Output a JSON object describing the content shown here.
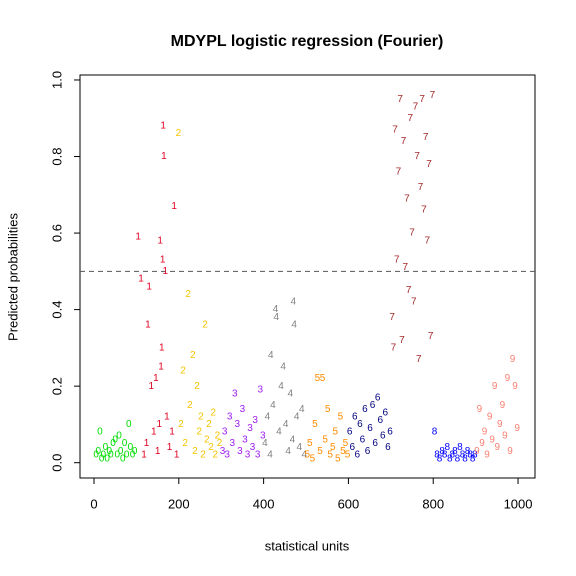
{
  "chart_data": {
    "type": "scatter",
    "title": "MDYPL logistic regression (Fourier)",
    "x_label": "statistical units",
    "y_label": "Predicted probabilities",
    "xlim": [
      -33,
      1040
    ],
    "ylim": [
      -0.04,
      1.013
    ],
    "xticks": [
      0,
      200,
      400,
      600,
      800,
      1000
    ],
    "yticks": [
      {
        "value": 0,
        "label": "0.0"
      },
      0.2,
      0.4,
      0.6,
      0.8,
      {
        "value": 1,
        "label": "1.0"
      }
    ],
    "hline": 0.5,
    "series": [
      {
        "name": "0",
        "color": "#00dd00",
        "x": [
          5,
          10,
          14,
          18,
          22,
          27,
          31,
          36,
          40,
          45,
          50,
          55,
          59,
          63,
          68,
          72,
          77,
          82,
          86,
          91,
          96
        ],
        "values": [
          0.02,
          0.03,
          0.08,
          0.01,
          0.02,
          0.04,
          0.01,
          0.03,
          0.02,
          0.05,
          0.06,
          0.02,
          0.07,
          0.03,
          0.01,
          0.05,
          0.02,
          0.1,
          0.04,
          0.02,
          0.03
        ]
      },
      {
        "name": "1",
        "color": "#e00020",
        "x": [
          104,
          111,
          118,
          124,
          127,
          130,
          135,
          141,
          146,
          150,
          154,
          156,
          158,
          160,
          162,
          163,
          165,
          168,
          172,
          178,
          184,
          189,
          195
        ],
        "values": [
          0.59,
          0.48,
          0.02,
          0.05,
          0.36,
          0.46,
          0.2,
          0.08,
          0.22,
          0.03,
          0.1,
          0.58,
          0.25,
          0.3,
          0.53,
          0.88,
          0.8,
          0.5,
          0.12,
          0.04,
          0.08,
          0.67,
          0.02
        ]
      },
      {
        "name": "2",
        "color": "#f5c400",
        "x": [
          199,
          205,
          210,
          215,
          222,
          226,
          233,
          238,
          243,
          248,
          252,
          257,
          262,
          266,
          271,
          276,
          281,
          286,
          291,
          296
        ],
        "values": [
          0.86,
          0.1,
          0.24,
          0.05,
          0.44,
          0.15,
          0.28,
          0.03,
          0.2,
          0.08,
          0.12,
          0.02,
          0.36,
          0.06,
          0.1,
          0.04,
          0.13,
          0.02,
          0.07,
          0.05
        ]
      },
      {
        "name": "3",
        "color": "#a020f0",
        "x": [
          303,
          308,
          314,
          320,
          326,
          332,
          338,
          344,
          350,
          356,
          362,
          368,
          374,
          380,
          386,
          392,
          398
        ],
        "values": [
          0.03,
          0.08,
          0.02,
          0.12,
          0.05,
          0.18,
          0.1,
          0.03,
          0.14,
          0.06,
          0.02,
          0.09,
          0.04,
          0.11,
          0.02,
          0.19,
          0.07
        ]
      },
      {
        "name": "4",
        "color": "#7f7f7f",
        "x": [
          403,
          409,
          415,
          417,
          422,
          428,
          430,
          436,
          441,
          446,
          452,
          458,
          463,
          468,
          470,
          472,
          478,
          484,
          490,
          496
        ],
        "values": [
          0.05,
          0.12,
          0.02,
          0.28,
          0.15,
          0.4,
          0.38,
          0.08,
          0.2,
          0.25,
          0.1,
          0.03,
          0.18,
          0.06,
          0.42,
          0.36,
          0.12,
          0.04,
          0.14,
          0.02
        ]
      },
      {
        "name": "5",
        "color": "#ff8c00",
        "x": [
          503,
          509,
          515,
          521,
          527,
          533,
          539,
          545,
          551,
          557,
          563,
          569,
          575,
          581,
          587,
          593,
          598
        ],
        "values": [
          0.02,
          0.05,
          0.01,
          0.1,
          0.22,
          0.03,
          0.22,
          0.06,
          0.14,
          0.02,
          0.04,
          0.08,
          0.01,
          0.12,
          0.03,
          0.05,
          0.02
        ]
      },
      {
        "name": "6",
        "color": "#000080",
        "x": [
          603,
          609,
          615,
          621,
          627,
          633,
          639,
          645,
          651,
          657,
          663,
          669,
          675,
          681,
          687,
          693,
          698
        ],
        "values": [
          0.08,
          0.04,
          0.12,
          0.02,
          0.1,
          0.06,
          0.14,
          0.03,
          0.09,
          0.15,
          0.05,
          0.17,
          0.11,
          0.07,
          0.13,
          0.04,
          0.08
        ]
      },
      {
        "name": "7",
        "color": "#a52a2a",
        "x": [
          703,
          706,
          710,
          714,
          718,
          722,
          726,
          730,
          734,
          738,
          742,
          746,
          750,
          754,
          758,
          762,
          766,
          770,
          774,
          778,
          782,
          786,
          790,
          794,
          798
        ],
        "values": [
          0.38,
          0.3,
          0.87,
          0.53,
          0.76,
          0.95,
          0.32,
          0.84,
          0.51,
          0.69,
          0.45,
          0.9,
          0.6,
          0.42,
          0.93,
          0.8,
          0.27,
          0.72,
          0.95,
          0.66,
          0.85,
          0.58,
          0.78,
          0.33,
          0.96
        ]
      },
      {
        "name": "8",
        "color": "#0000ff",
        "x": [
          803,
          809,
          815,
          821,
          827,
          833,
          839,
          845,
          851,
          857,
          863,
          869,
          875,
          881,
          887,
          893,
          898
        ],
        "values": [
          0.08,
          0.02,
          0.01,
          0.03,
          0.02,
          0.04,
          0.01,
          0.02,
          0.03,
          0.01,
          0.04,
          0.02,
          0.01,
          0.03,
          0.02,
          0.01,
          0.02
        ]
      },
      {
        "name": "9",
        "color": "#fa8072",
        "x": [
          903,
          909,
          915,
          921,
          927,
          933,
          939,
          945,
          951,
          957,
          963,
          969,
          975,
          981,
          987,
          993,
          998
        ],
        "values": [
          0.03,
          0.14,
          0.05,
          0.08,
          0.02,
          0.12,
          0.06,
          0.2,
          0.04,
          0.1,
          0.15,
          0.07,
          0.22,
          0.03,
          0.27,
          0.2,
          0.09
        ]
      }
    ]
  }
}
